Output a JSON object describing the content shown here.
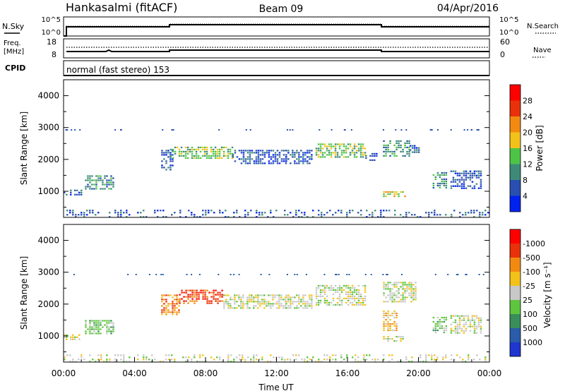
{
  "header": {
    "station": "Hankasalmi (fitACF)",
    "beam": "Beam 09",
    "date": "04/Apr/2016"
  },
  "panel_nsky": {
    "label": "N.Sky",
    "left_ticks": [
      "10^5",
      "10^0"
    ],
    "right_ticks": [
      "10^5",
      "10^0"
    ],
    "right_label": "N.Search"
  },
  "panel_freq": {
    "label_line1": "Freq.",
    "label_line2": "[MHz]",
    "left_ticks": [
      "18",
      "8"
    ],
    "right_ticks": [
      "60",
      "0"
    ],
    "right_label": "Nave"
  },
  "panel_cpid": {
    "label": "CPID",
    "text": "normal (fast stereo) 153"
  },
  "chart_data": [
    {
      "type": "heatmap",
      "name": "power",
      "ylabel": "Slant Range [km]",
      "xlabel": "",
      "ylim": [
        180,
        4500
      ],
      "yticks": [
        1000,
        2000,
        3000,
        4000
      ],
      "colorbar": {
        "label": "Power [dB]",
        "levels": [
          "4",
          "8",
          "12",
          "16",
          "20",
          "24",
          "28"
        ],
        "colors": [
          "#0022ee",
          "#2a4fb0",
          "#3d8a78",
          "#4ec447",
          "#f2c21a",
          "#f28a12",
          "#e8310a",
          "#ff0000"
        ]
      },
      "regions": [
        {
          "t": [
            0.0,
            1.0
          ],
          "r": [
            880,
            1050
          ],
          "c": 1
        },
        {
          "t": [
            1.2,
            2.8
          ],
          "r": [
            1050,
            1500
          ],
          "c": 2
        },
        {
          "t": [
            5.5,
            6.2
          ],
          "r": [
            1700,
            2300
          ],
          "c": 1
        },
        {
          "t": [
            6.0,
            9.5
          ],
          "r": [
            2050,
            2400
          ],
          "c": 3
        },
        {
          "t": [
            9.5,
            12.5
          ],
          "r": [
            1900,
            2300
          ],
          "c": 1
        },
        {
          "t": [
            12.5,
            14.0
          ],
          "r": [
            1900,
            2300
          ],
          "c": 1
        },
        {
          "t": [
            14.2,
            17.0
          ],
          "r": [
            2050,
            2500
          ],
          "c": 3
        },
        {
          "t": [
            17.0,
            17.6
          ],
          "r": [
            1950,
            2200
          ],
          "c": 1
        },
        {
          "t": [
            18.0,
            19.5
          ],
          "r": [
            2100,
            2600
          ],
          "c": 2
        },
        {
          "t": [
            19.5,
            20.0
          ],
          "r": [
            2200,
            2450
          ],
          "c": 1
        },
        {
          "t": [
            18.0,
            19.2
          ],
          "r": [
            850,
            1000
          ],
          "c": 4
        },
        {
          "t": [
            20.8,
            21.6
          ],
          "r": [
            1100,
            1600
          ],
          "c": 2
        },
        {
          "t": [
            21.8,
            23.5
          ],
          "r": [
            1100,
            1650
          ],
          "c": 1
        },
        {
          "t": [
            0.0,
            24.0
          ],
          "r": [
            190,
            420
          ],
          "c": 1
        }
      ]
    },
    {
      "type": "heatmap",
      "name": "velocity",
      "ylabel": "Slant Range [km]",
      "xlabel": "Time UT",
      "ylim": [
        180,
        4500
      ],
      "yticks": [
        1000,
        2000,
        3000,
        4000
      ],
      "xticks": [
        "00:00",
        "04:00",
        "08:00",
        "12:00",
        "16:00",
        "20:00",
        "00:00"
      ],
      "colorbar": {
        "label": "Velocity [m s⁻¹]",
        "levels": [
          "1000",
          "500",
          "100",
          "25",
          "-25",
          "-100",
          "-500",
          "-1000"
        ],
        "colors": [
          "#2036cf",
          "#2a5caa",
          "#3a8e5a",
          "#5ec53e",
          "#c8c8c8",
          "#f2c21a",
          "#f28a12",
          "#e8310a",
          "#ff0000"
        ]
      },
      "regions": [
        {
          "t": [
            0.0,
            1.0
          ],
          "r": [
            880,
            1050
          ],
          "c": 4
        },
        {
          "t": [
            1.2,
            2.8
          ],
          "r": [
            1050,
            1500
          ],
          "c": 3
        },
        {
          "t": [
            5.5,
            6.5
          ],
          "r": [
            1700,
            2300
          ],
          "c": 6
        },
        {
          "t": [
            6.5,
            9.0
          ],
          "r": [
            2050,
            2450
          ],
          "c": 7
        },
        {
          "t": [
            9.0,
            12.5
          ],
          "r": [
            1900,
            2300
          ],
          "c": 4
        },
        {
          "t": [
            12.5,
            14.0
          ],
          "r": [
            1900,
            2300
          ],
          "c": 4
        },
        {
          "t": [
            14.2,
            17.0
          ],
          "r": [
            2000,
            2600
          ],
          "c": 4
        },
        {
          "t": [
            18.0,
            19.8
          ],
          "r": [
            2100,
            2700
          ],
          "c": 4
        },
        {
          "t": [
            18.0,
            19.2
          ],
          "r": [
            850,
            1000
          ],
          "c": 4
        },
        {
          "t": [
            18.0,
            18.8
          ],
          "r": [
            1200,
            1800
          ],
          "c": 5
        },
        {
          "t": [
            20.8,
            21.6
          ],
          "r": [
            1100,
            1600
          ],
          "c": 3
        },
        {
          "t": [
            21.8,
            23.5
          ],
          "r": [
            1100,
            1650
          ],
          "c": 4
        },
        {
          "t": [
            0.0,
            24.0
          ],
          "r": [
            190,
            420
          ],
          "c": 4
        }
      ]
    }
  ]
}
